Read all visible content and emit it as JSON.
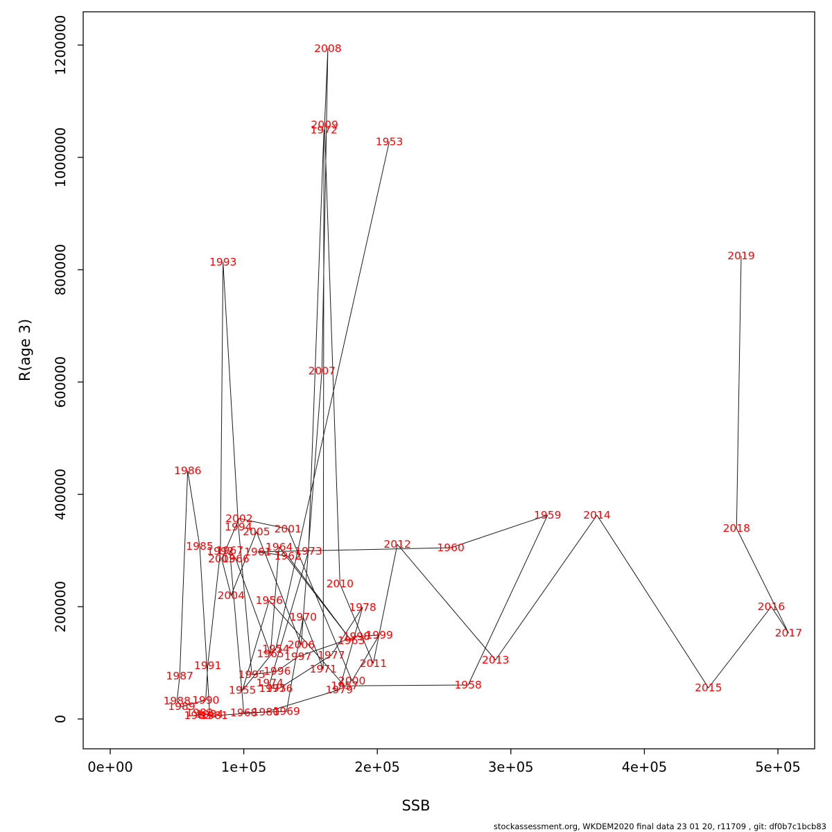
{
  "figure": {
    "xlabel": "SSB",
    "ylabel": "R(age 3)",
    "footer": "stockassessment.org, WKDEM2020 final data 23 01 20, r11709 , git: df0b7c1bcb83",
    "label_color": "#ff0000",
    "line_color": "#1a1a1a",
    "background": "#ffffff"
  },
  "chart_data": {
    "type": "scatter",
    "subtype": "labeled-line-trajectory (stock-recruitment plot, years connected chronologically)",
    "title": "",
    "xlabel": "SSB",
    "ylabel": "R(age 3)",
    "xlim": [
      -20000,
      527000
    ],
    "ylim": [
      -55000,
      1260000
    ],
    "grid": false,
    "legend": "none",
    "x_ticks": {
      "values": [
        0,
        100000,
        200000,
        300000,
        400000,
        500000
      ],
      "labels": [
        "0e+00",
        "1e+05",
        "2e+05",
        "3e+05",
        "4e+05",
        "5e+05"
      ]
    },
    "y_ticks": {
      "values": [
        0,
        200000,
        400000,
        600000,
        800000,
        1000000,
        1200000
      ],
      "labels": [
        "0",
        "200000",
        "400000",
        "600000",
        "800000",
        "1000000",
        "1200000"
      ]
    },
    "points": [
      {
        "year": 1953,
        "ssb": 209000,
        "r": 1028000
      },
      {
        "year": 1954,
        "ssb": 124000,
        "r": 125000
      },
      {
        "year": 1955,
        "ssb": 99000,
        "r": 51000
      },
      {
        "year": 1956,
        "ssb": 119000,
        "r": 211000
      },
      {
        "year": 1957,
        "ssb": 175500,
        "r": 59000
      },
      {
        "year": 1958,
        "ssb": 268000,
        "r": 60500
      },
      {
        "year": 1959,
        "ssb": 327500,
        "r": 363000
      },
      {
        "year": 1960,
        "ssb": 255000,
        "r": 305000
      },
      {
        "year": 1961,
        "ssb": 110500,
        "r": 297500
      },
      {
        "year": 1962,
        "ssb": 133000,
        "r": 290000
      },
      {
        "year": 1963,
        "ssb": 180500,
        "r": 139500
      },
      {
        "year": 1964,
        "ssb": 126500,
        "r": 306000
      },
      {
        "year": 1965,
        "ssb": 120000,
        "r": 116000
      },
      {
        "year": 1966,
        "ssb": 94000,
        "r": 285000
      },
      {
        "year": 1967,
        "ssb": 89500,
        "r": 300000
      },
      {
        "year": 1968,
        "ssb": 100000,
        "r": 11000
      },
      {
        "year": 1969,
        "ssb": 132000,
        "r": 13500
      },
      {
        "year": 1970,
        "ssb": 144500,
        "r": 181500
      },
      {
        "year": 1971,
        "ssb": 159500,
        "r": 89000
      },
      {
        "year": 1972,
        "ssb": 160000,
        "r": 1049000
      },
      {
        "year": 1973,
        "ssb": 148500,
        "r": 299000
      },
      {
        "year": 1974,
        "ssb": 119500,
        "r": 64000
      },
      {
        "year": 1975,
        "ssb": 121500,
        "r": 54500
      },
      {
        "year": 1976,
        "ssb": 126500,
        "r": 54500
      },
      {
        "year": 1977,
        "ssb": 165500,
        "r": 113500
      },
      {
        "year": 1978,
        "ssb": 189000,
        "r": 199000
      },
      {
        "year": 1979,
        "ssb": 171500,
        "r": 52000
      },
      {
        "year": 1980,
        "ssb": 116500,
        "r": 12500
      },
      {
        "year": 1981,
        "ssb": 78000,
        "r": 6000
      },
      {
        "year": 1982,
        "ssb": 67000,
        "r": 11000
      },
      {
        "year": 1983,
        "ssb": 65500,
        "r": 6000
      },
      {
        "year": 1984,
        "ssb": 74500,
        "r": 8500
      },
      {
        "year": 1985,
        "ssb": 67000,
        "r": 307500
      },
      {
        "year": 1986,
        "ssb": 58000,
        "r": 442000
      },
      {
        "year": 1987,
        "ssb": 52000,
        "r": 76500
      },
      {
        "year": 1988,
        "ssb": 50000,
        "r": 32000
      },
      {
        "year": 1989,
        "ssb": 53500,
        "r": 22000
      },
      {
        "year": 1990,
        "ssb": 71500,
        "r": 33500
      },
      {
        "year": 1991,
        "ssb": 73000,
        "r": 95000
      },
      {
        "year": 1992,
        "ssb": 82500,
        "r": 299000
      },
      {
        "year": 1993,
        "ssb": 84500,
        "r": 813500
      },
      {
        "year": 1994,
        "ssb": 96000,
        "r": 342000
      },
      {
        "year": 1995,
        "ssb": 106000,
        "r": 79000
      },
      {
        "year": 1996,
        "ssb": 125000,
        "r": 85000
      },
      {
        "year": 1997,
        "ssb": 140500,
        "r": 111000
      },
      {
        "year": 1998,
        "ssb": 184500,
        "r": 147000
      },
      {
        "year": 1999,
        "ssb": 201500,
        "r": 149500
      },
      {
        "year": 2000,
        "ssb": 181000,
        "r": 68000
      },
      {
        "year": 2001,
        "ssb": 133000,
        "r": 338500
      },
      {
        "year": 2002,
        "ssb": 96500,
        "r": 357000
      },
      {
        "year": 2003,
        "ssb": 83500,
        "r": 285000
      },
      {
        "year": 2004,
        "ssb": 90500,
        "r": 220000
      },
      {
        "year": 2005,
        "ssb": 109500,
        "r": 333500
      },
      {
        "year": 2006,
        "ssb": 143000,
        "r": 132000
      },
      {
        "year": 2007,
        "ssb": 158500,
        "r": 620000
      },
      {
        "year": 2008,
        "ssb": 163000,
        "r": 1194000
      },
      {
        "year": 2009,
        "ssb": 160500,
        "r": 1058000
      },
      {
        "year": 2010,
        "ssb": 172000,
        "r": 241000
      },
      {
        "year": 2011,
        "ssb": 197000,
        "r": 99000
      },
      {
        "year": 2012,
        "ssb": 215000,
        "r": 311000
      },
      {
        "year": 2013,
        "ssb": 288500,
        "r": 105000
      },
      {
        "year": 2014,
        "ssb": 364500,
        "r": 363000
      },
      {
        "year": 2015,
        "ssb": 448000,
        "r": 55500
      },
      {
        "year": 2016,
        "ssb": 495000,
        "r": 200000
      },
      {
        "year": 2017,
        "ssb": 508000,
        "r": 153000
      },
      {
        "year": 2018,
        "ssb": 469000,
        "r": 339500
      },
      {
        "year": 2019,
        "ssb": 472500,
        "r": 824500
      }
    ]
  }
}
